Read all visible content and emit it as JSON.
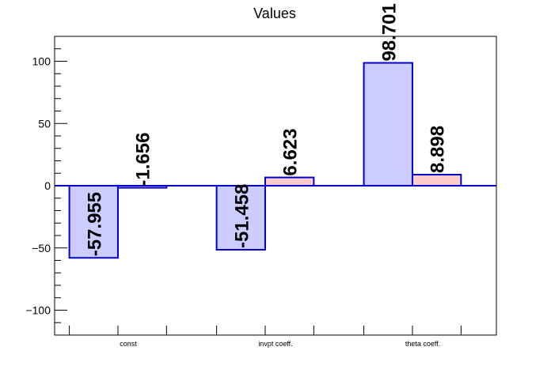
{
  "chart_data": {
    "type": "bar",
    "title": "Values",
    "categories": [
      "const",
      "invpt coeff.",
      "theta coeff."
    ],
    "series": [
      {
        "values": [
          -57.955,
          -51.458,
          98.701
        ],
        "fill": "#ccccff",
        "stroke": "#0000cc"
      },
      {
        "values": [
          -1.656,
          6.623,
          8.898
        ],
        "fill": "#ffcccc",
        "stroke": "#0000cc"
      }
    ],
    "value_labels": [
      [
        "-57.955",
        "-51.458",
        "98.701"
      ],
      [
        "-1.656",
        "6.623",
        "8.898"
      ]
    ],
    "ylim": [
      -120,
      120
    ],
    "yticks": [
      "100",
      "50",
      "0",
      "−50",
      "−100"
    ],
    "ytick_values": [
      100,
      50,
      0,
      -50,
      -100
    ],
    "grid": false,
    "zero_line_color": "#0000cc"
  }
}
